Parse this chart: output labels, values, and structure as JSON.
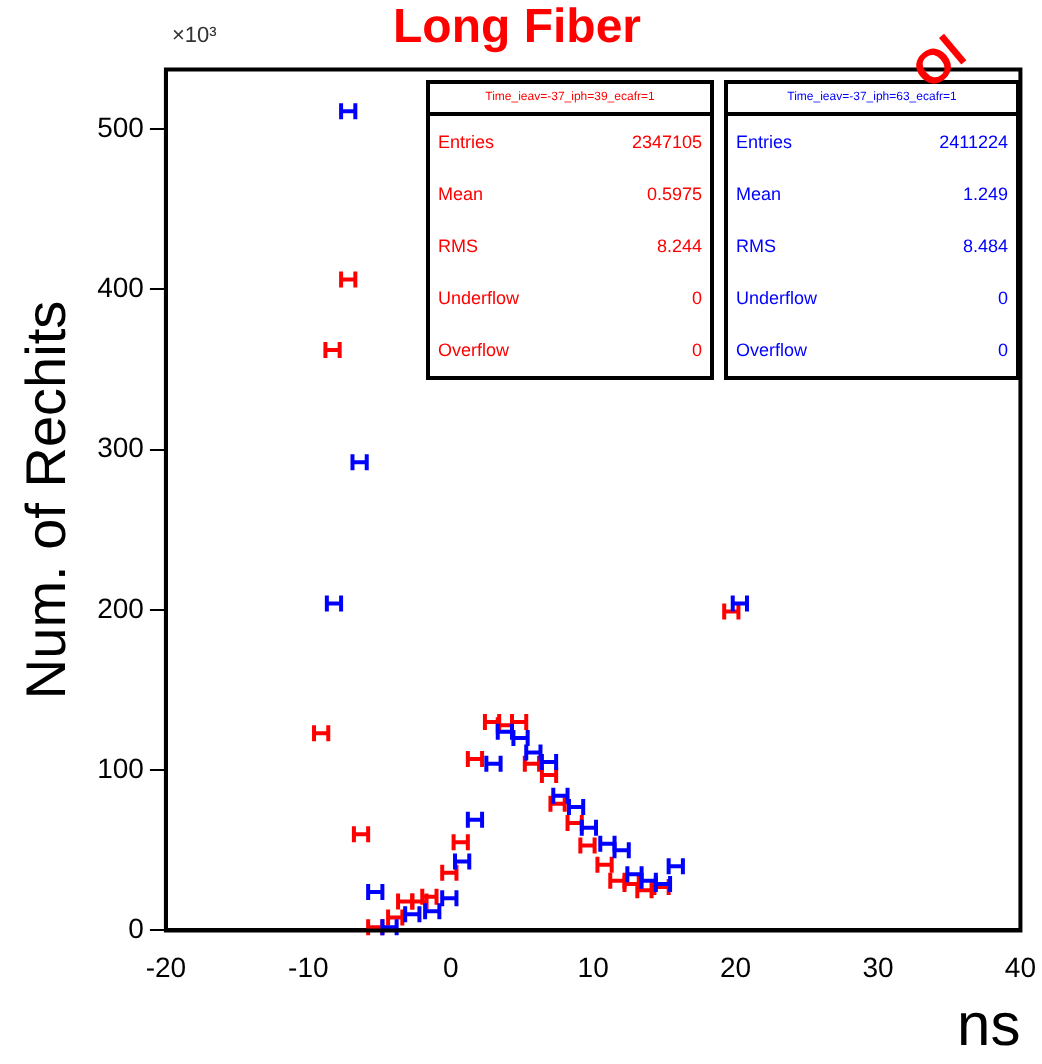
{
  "chart_data": {
    "type": "scatter",
    "title": "Long Fiber",
    "ylabel": "Num. of Rechits",
    "xlabel": "ns",
    "annotations": [
      "×10³",
      "Time_ieav=-37_iph=39_ecafr=1",
      "Entries",
      "2347105",
      "Mean",
      "0.5975",
      "RMS",
      "8.244",
      "Underflow",
      "0",
      "Overflow",
      "0",
      "Time_ieav=-37_iph=63_ecafr=1",
      "Entries",
      "2411224",
      "Mean",
      "1.249",
      "RMS",
      "8.484",
      "Underflow",
      "0",
      "Overflow",
      "0",
      "Ol"
    ],
    "series": [
      {
        "color": "#ff0000",
        "x": [
          -9.1,
          -8.3,
          -7.2,
          -6.3,
          -5.3,
          -3.9,
          -3.2,
          -2.2,
          -1.5,
          -0.1,
          0.7,
          1.7,
          2.9,
          3.8,
          4.8,
          5.7,
          6.9,
          7.5,
          8.7,
          9.6,
          10.8,
          11.7,
          12.7,
          13.6,
          14.8,
          19.7
        ],
        "values": [
          123,
          362,
          406,
          60,
          2,
          8,
          18,
          18,
          21,
          36,
          55,
          107,
          130,
          128,
          130,
          104,
          97,
          79,
          67,
          53,
          41,
          31,
          29,
          25,
          27,
          199
        ],
        "xerrors": [
          0.5,
          0.5,
          0.5,
          0.5,
          0.5,
          0.5,
          0.5,
          0.5,
          0.5,
          0.5,
          0.5,
          0.5,
          0.5,
          0.5,
          0.5,
          0.5,
          0.5,
          0.5,
          0.5,
          0.5,
          0.5,
          0.5,
          0.5,
          0.5,
          0.5,
          0.5
        ]
      },
      {
        "color": "#0000ff",
        "x": [
          -8.2,
          -7.2,
          -6.4,
          -5.3,
          -4.3,
          -2.7,
          -1.3,
          -0.1,
          0.8,
          1.7,
          3.0,
          3.8,
          4.9,
          5.8,
          6.9,
          7.7,
          8.8,
          9.7,
          11.0,
          12.0,
          12.9,
          13.9,
          14.9,
          15.8,
          20.3
        ],
        "values": [
          204,
          511,
          292,
          24,
          2,
          10,
          12,
          20,
          43,
          69,
          104,
          124,
          120,
          111,
          105,
          84,
          77,
          64,
          54,
          50,
          35,
          31,
          29,
          40,
          204
        ],
        "xerrors": [
          0.5,
          0.5,
          0.5,
          0.5,
          0.5,
          0.5,
          0.5,
          0.5,
          0.5,
          0.5,
          0.5,
          0.5,
          0.5,
          0.5,
          0.5,
          0.5,
          0.5,
          0.5,
          0.5,
          0.5,
          0.5,
          0.5,
          0.5,
          0.5,
          0.5
        ]
      }
    ],
    "xlim": [
      -20,
      40
    ],
    "xticks": [
      -20,
      -10,
      0,
      10,
      20,
      30,
      40
    ],
    "ylim": [
      0,
      537
    ],
    "yticks": [
      0,
      100,
      200,
      300,
      400,
      500
    ],
    "grid": false,
    "legend": false
  }
}
